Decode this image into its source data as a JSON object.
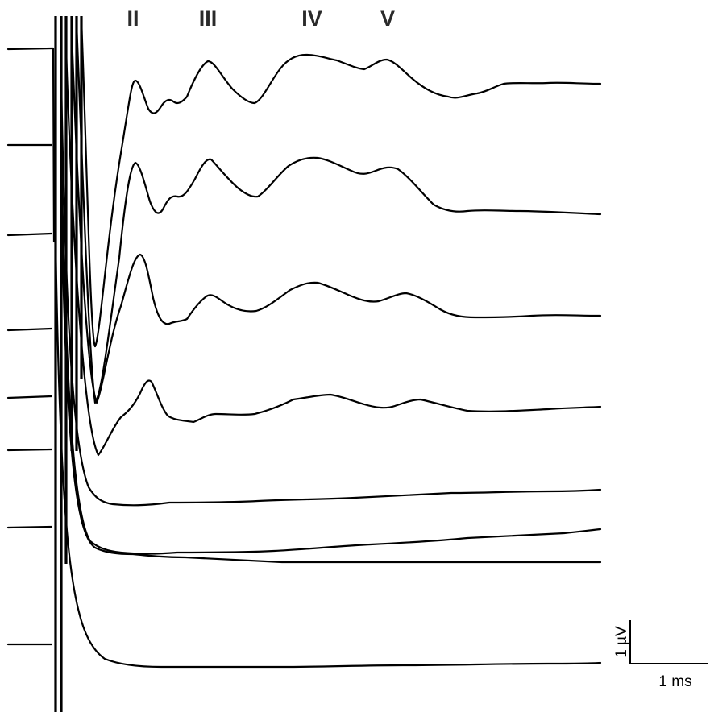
{
  "chart_data": {
    "type": "line",
    "title": "",
    "xlabel": "",
    "ylabel": "",
    "peak_labels": [
      "II",
      "III",
      "IV",
      "V"
    ],
    "scale_bar": {
      "x_label": "1 ms",
      "y_label": "1 µV",
      "x_value_ms": 1,
      "y_value_uv": 1
    },
    "grid": false,
    "legend": "none",
    "stroke_color": "#000000",
    "label_color": "#2a2a2a"
  }
}
